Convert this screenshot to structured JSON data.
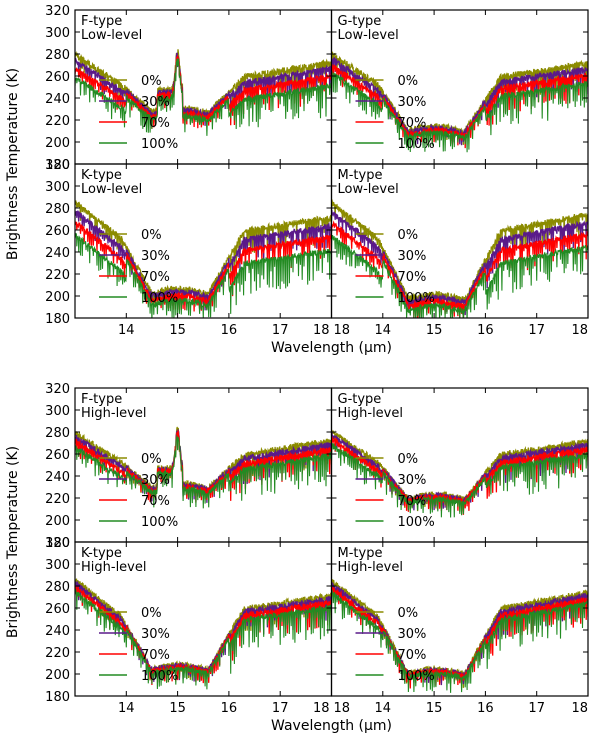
{
  "colors": {
    "olive": "#8b8b00",
    "purple": "#5a1a8a",
    "red": "#ff0000",
    "green": "#228b22"
  },
  "chart_data": {
    "type": "line",
    "figures": [
      {
        "ylabel": "Brightness Temperature (K)",
        "xlabel": "Wavelength (μm)",
        "xlim": [
          13,
          18
        ],
        "ylim": [
          180,
          320
        ],
        "xticks": [
          14,
          15,
          16,
          17,
          18
        ],
        "yticks": [
          180,
          200,
          220,
          240,
          260,
          280,
          300,
          320
        ],
        "panels": [
          {
            "star": "F-type",
            "level": "Low-level",
            "min_temp": 230,
            "band": 0.7
          },
          {
            "star": "G-type",
            "level": "Low-level",
            "min_temp": 213,
            "band": 0.6
          },
          {
            "star": "K-type",
            "level": "Low-level",
            "min_temp": 205,
            "band": 1.0
          },
          {
            "star": "M-type",
            "level": "Low-level",
            "min_temp": 200,
            "band": 1.0
          }
        ]
      },
      {
        "ylabel": "Brightness Temperature (K)",
        "xlabel": "Wavelength (μm)",
        "xlim": [
          13,
          18
        ],
        "ylim": [
          180,
          320
        ],
        "xticks": [
          14,
          15,
          16,
          17,
          18
        ],
        "yticks": [
          180,
          200,
          220,
          240,
          260,
          280,
          300,
          320
        ],
        "panels": [
          {
            "star": "F-type",
            "level": "High-level",
            "min_temp": 232,
            "band": 0.45
          },
          {
            "star": "G-type",
            "level": "High-level",
            "min_temp": 222,
            "band": 0.4
          },
          {
            "star": "K-type",
            "level": "High-level",
            "min_temp": 207,
            "band": 0.35
          },
          {
            "star": "M-type",
            "level": "High-level",
            "min_temp": 203,
            "band": 0.35
          }
        ]
      }
    ],
    "legend": {
      "position": "center",
      "entries": [
        {
          "label": "0%",
          "color": "#8b8b00"
        },
        {
          "label": "30%",
          "color": "#5a1a8a"
        },
        {
          "label": "70%",
          "color": "#ff0000"
        },
        {
          "label": "100%",
          "color": "#228b22"
        }
      ]
    }
  }
}
